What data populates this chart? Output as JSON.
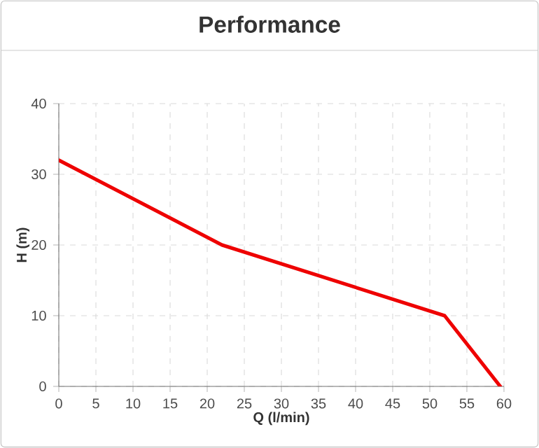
{
  "chart_data": {
    "type": "line",
    "title": "Performance",
    "xlabel": "Q (l/min)",
    "ylabel": "H (m)",
    "x": [
      0,
      22,
      52,
      59.5
    ],
    "series": [
      {
        "color": "#ee0000",
        "values": [
          32,
          20,
          10,
          0
        ]
      }
    ],
    "xlim": [
      0,
      60
    ],
    "xticks": [
      0,
      5,
      10,
      15,
      20,
      25,
      30,
      35,
      40,
      45,
      50,
      55,
      60
    ],
    "ylim": [
      0,
      40
    ],
    "yticks": [
      0,
      10,
      20,
      30,
      40
    ],
    "grid": true,
    "marker": "none",
    "line_style": "solid"
  }
}
